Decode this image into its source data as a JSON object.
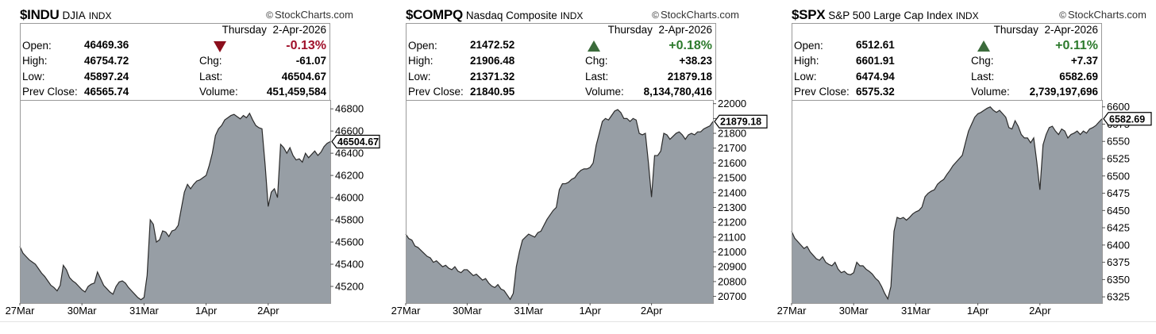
{
  "chart_data": [
    {
      "type": "area",
      "symbol": "$INDU",
      "name": "DJIA",
      "exchange": "INDX",
      "brand": "StockCharts.com",
      "day": "Thursday",
      "date": "2-Apr-2026",
      "change_pct": "-0.13%",
      "direction": "down",
      "stats": {
        "open": {
          "label": "Open:",
          "value": "46469.36"
        },
        "high": {
          "label": "High:",
          "value": "46754.72"
        },
        "low": {
          "label": "Low:",
          "value": "45897.24"
        },
        "prev_close": {
          "label": "Prev Close:",
          "value": "46565.74"
        },
        "chg": {
          "label": "Chg:",
          "value": "-61.07"
        },
        "last": {
          "label": "Last:",
          "value": "46504.67"
        },
        "volume": {
          "label": "Volume:",
          "value": "451,459,584"
        }
      },
      "last_label": "46504.67",
      "last_value": 46504.67,
      "ylim": [
        45050,
        46880
      ],
      "yticks": [
        46800,
        46600,
        46400,
        46200,
        46000,
        45800,
        45600,
        45400,
        45200
      ],
      "ytick_labels": [
        "46800",
        "46600",
        "46400",
        "46200",
        "46000",
        "45800",
        "45600",
        "45400",
        "45200"
      ],
      "xlim": [
        0,
        5
      ],
      "xticks": [
        {
          "x": 0,
          "label": "27Mar"
        },
        {
          "x": 1,
          "label": "30Mar"
        },
        {
          "x": 2,
          "label": "31Mar"
        },
        {
          "x": 3,
          "label": "1Apr"
        },
        {
          "x": 4,
          "label": "2Apr"
        }
      ],
      "x": [
        0,
        0.05,
        0.1,
        0.15,
        0.2,
        0.25,
        0.3,
        0.35,
        0.4,
        0.45,
        0.5,
        0.55,
        0.6,
        0.65,
        0.7,
        0.75,
        0.8,
        0.85,
        0.9,
        0.95,
        1,
        1.05,
        1.1,
        1.15,
        1.2,
        1.25,
        1.3,
        1.35,
        1.4,
        1.45,
        1.5,
        1.55,
        1.6,
        1.65,
        1.7,
        1.75,
        1.8,
        1.85,
        1.9,
        1.95,
        2,
        2.05,
        2.1,
        2.15,
        2.2,
        2.25,
        2.3,
        2.35,
        2.4,
        2.45,
        2.5,
        2.55,
        2.6,
        2.65,
        2.7,
        2.75,
        2.8,
        2.85,
        2.9,
        2.95,
        3,
        3.05,
        3.1,
        3.15,
        3.2,
        3.25,
        3.3,
        3.35,
        3.4,
        3.45,
        3.5,
        3.55,
        3.6,
        3.65,
        3.7,
        3.75,
        3.8,
        3.85,
        3.9,
        3.95,
        4,
        4.05,
        4.1,
        4.15,
        4.2,
        4.25,
        4.3,
        4.35,
        4.4,
        4.45,
        4.5,
        4.55,
        4.6,
        4.65,
        4.7,
        4.75,
        4.8,
        4.85,
        4.9,
        4.95,
        5
      ],
      "y": [
        45560,
        45500,
        45470,
        45440,
        45420,
        45400,
        45360,
        45320,
        45290,
        45250,
        45210,
        45190,
        45160,
        45210,
        45390,
        45350,
        45280,
        45250,
        45230,
        45200,
        45170,
        45150,
        45200,
        45220,
        45230,
        45330,
        45270,
        45210,
        45180,
        45150,
        45130,
        45200,
        45240,
        45250,
        45230,
        45190,
        45160,
        45130,
        45100,
        45080,
        45100,
        45300,
        45800,
        45760,
        45600,
        45620,
        45700,
        45690,
        45650,
        45700,
        45710,
        45750,
        45900,
        46050,
        46120,
        46080,
        46120,
        46150,
        46160,
        46180,
        46200,
        46290,
        46400,
        46560,
        46620,
        46650,
        46700,
        46720,
        46740,
        46750,
        46730,
        46710,
        46740,
        46720,
        46760,
        46700,
        46650,
        46630,
        46620,
        46300,
        45920,
        46050,
        46080,
        46000,
        46480,
        46450,
        46400,
        46450,
        46380,
        46340,
        46350,
        46320,
        46400,
        46360,
        46390,
        46420,
        46380,
        46410,
        46460,
        46490,
        46504.67
      ]
    },
    {
      "type": "area",
      "symbol": "$COMPQ",
      "name": "Nasdaq Composite",
      "exchange": "INDX",
      "brand": "StockCharts.com",
      "day": "Thursday",
      "date": "2-Apr-2026",
      "change_pct": "+0.18%",
      "direction": "up",
      "stats": {
        "open": {
          "label": "Open:",
          "value": "21472.52"
        },
        "high": {
          "label": "High:",
          "value": "21906.48"
        },
        "low": {
          "label": "Low:",
          "value": "21371.32"
        },
        "prev_close": {
          "label": "Prev Close:",
          "value": "21840.95"
        },
        "chg": {
          "label": "Chg:",
          "value": "+38.23"
        },
        "last": {
          "label": "Last:",
          "value": "21879.18"
        },
        "volume": {
          "label": "Volume:",
          "value": "8,134,780,416"
        }
      },
      "last_label": "21879.18",
      "last_value": 21879.18,
      "ylim": [
        20655,
        22025
      ],
      "yticks": [
        22000,
        21900,
        21800,
        21700,
        21600,
        21500,
        21400,
        21300,
        21200,
        21100,
        21000,
        20900,
        20800,
        20700
      ],
      "ytick_labels": [
        "22000",
        "21900",
        "21800",
        "21700",
        "21600",
        "21500",
        "21400",
        "21300",
        "21200",
        "21100",
        "21000",
        "20900",
        "20800",
        "20700"
      ],
      "xlim": [
        0,
        5
      ],
      "xticks": [
        {
          "x": 0,
          "label": "27Mar"
        },
        {
          "x": 1,
          "label": "30Mar"
        },
        {
          "x": 2,
          "label": "31Mar"
        },
        {
          "x": 3,
          "label": "1Apr"
        },
        {
          "x": 4,
          "label": "2Apr"
        }
      ],
      "x": [
        0,
        0.05,
        0.1,
        0.15,
        0.2,
        0.25,
        0.3,
        0.35,
        0.4,
        0.45,
        0.5,
        0.55,
        0.6,
        0.65,
        0.7,
        0.75,
        0.8,
        0.85,
        0.9,
        0.95,
        1,
        1.05,
        1.1,
        1.15,
        1.2,
        1.25,
        1.3,
        1.35,
        1.4,
        1.45,
        1.5,
        1.55,
        1.6,
        1.65,
        1.7,
        1.75,
        1.8,
        1.85,
        1.9,
        1.95,
        2,
        2.05,
        2.1,
        2.15,
        2.2,
        2.25,
        2.3,
        2.35,
        2.4,
        2.45,
        2.5,
        2.55,
        2.6,
        2.65,
        2.7,
        2.75,
        2.8,
        2.85,
        2.9,
        2.95,
        3,
        3.05,
        3.1,
        3.15,
        3.2,
        3.25,
        3.3,
        3.35,
        3.4,
        3.45,
        3.5,
        3.55,
        3.6,
        3.65,
        3.7,
        3.75,
        3.8,
        3.85,
        3.9,
        3.95,
        4,
        4.05,
        4.1,
        4.15,
        4.2,
        4.25,
        4.3,
        4.35,
        4.4,
        4.45,
        4.5,
        4.55,
        4.6,
        4.65,
        4.7,
        4.75,
        4.8,
        4.85,
        4.9,
        4.95,
        5
      ],
      "y": [
        21120,
        21090,
        21080,
        21040,
        21030,
        21010,
        20990,
        20970,
        20960,
        20930,
        20940,
        20920,
        20900,
        20910,
        20890,
        20880,
        20900,
        20870,
        20860,
        20880,
        20880,
        20860,
        20840,
        20850,
        20830,
        20810,
        20820,
        20790,
        20770,
        20760,
        20780,
        20750,
        20740,
        20710,
        20680,
        20720,
        20900,
        21000,
        21080,
        21100,
        21120,
        21110,
        21100,
        21130,
        21140,
        21180,
        21220,
        21250,
        21280,
        21300,
        21420,
        21460,
        21460,
        21470,
        21490,
        21500,
        21530,
        21550,
        21560,
        21560,
        21570,
        21600,
        21720,
        21800,
        21880,
        21900,
        21890,
        21920,
        21950,
        21960,
        21940,
        21900,
        21900,
        21880,
        21900,
        21890,
        21800,
        21790,
        21800,
        21600,
        21370,
        21650,
        21650,
        21680,
        21800,
        21790,
        21760,
        21780,
        21800,
        21810,
        21790,
        21760,
        21790,
        21800,
        21790,
        21810,
        21810,
        21830,
        21840,
        21850,
        21879.18
      ]
    },
    {
      "type": "area",
      "symbol": "$SPX",
      "name": "S&P 500 Large Cap Index",
      "exchange": "INDX",
      "brand": "StockCharts.com",
      "day": "Thursday",
      "date": "2-Apr-2026",
      "change_pct": "+0.11%",
      "direction": "up",
      "stats": {
        "open": {
          "label": "Open:",
          "value": "6512.61"
        },
        "high": {
          "label": "High:",
          "value": "6601.91"
        },
        "low": {
          "label": "Low:",
          "value": "6474.94"
        },
        "prev_close": {
          "label": "Prev Close:",
          "value": "6575.32"
        },
        "chg": {
          "label": "Chg:",
          "value": "+7.37"
        },
        "last": {
          "label": "Last:",
          "value": "6582.69"
        },
        "volume": {
          "label": "Volume:",
          "value": "2,739,197,696"
        }
      },
      "last_label": "6582.69",
      "last_value": 6582.69,
      "ylim": [
        6316,
        6610
      ],
      "yticks": [
        6600,
        6575,
        6550,
        6525,
        6500,
        6475,
        6450,
        6425,
        6400,
        6375,
        6350,
        6325
      ],
      "ytick_labels": [
        "6600",
        "6575",
        "6550",
        "6525",
        "6500",
        "6475",
        "6450",
        "6425",
        "6400",
        "6375",
        "6350",
        "6325"
      ],
      "xlim": [
        0,
        5
      ],
      "xticks": [
        {
          "x": 0,
          "label": "27Mar"
        },
        {
          "x": 1,
          "label": "30Mar"
        },
        {
          "x": 2,
          "label": "31Mar"
        },
        {
          "x": 3,
          "label": "1Apr"
        },
        {
          "x": 4,
          "label": "2Apr"
        }
      ],
      "x": [
        0,
        0.05,
        0.1,
        0.15,
        0.2,
        0.25,
        0.3,
        0.35,
        0.4,
        0.45,
        0.5,
        0.55,
        0.6,
        0.65,
        0.7,
        0.75,
        0.8,
        0.85,
        0.9,
        0.95,
        1,
        1.05,
        1.1,
        1.15,
        1.2,
        1.25,
        1.3,
        1.35,
        1.4,
        1.45,
        1.5,
        1.55,
        1.6,
        1.65,
        1.7,
        1.75,
        1.8,
        1.85,
        1.9,
        1.95,
        2,
        2.05,
        2.1,
        2.15,
        2.2,
        2.25,
        2.3,
        2.35,
        2.4,
        2.45,
        2.5,
        2.55,
        2.6,
        2.65,
        2.7,
        2.75,
        2.8,
        2.85,
        2.9,
        2.95,
        3,
        3.05,
        3.1,
        3.15,
        3.2,
        3.25,
        3.3,
        3.35,
        3.4,
        3.45,
        3.5,
        3.55,
        3.6,
        3.65,
        3.7,
        3.75,
        3.8,
        3.85,
        3.9,
        3.95,
        4,
        4.05,
        4.1,
        4.15,
        4.2,
        4.25,
        4.3,
        4.35,
        4.4,
        4.45,
        4.5,
        4.55,
        4.6,
        4.65,
        4.7,
        4.75,
        4.8,
        4.85,
        4.9,
        4.95,
        5
      ],
      "y": [
        6420,
        6410,
        6405,
        6400,
        6395,
        6398,
        6390,
        6385,
        6380,
        6378,
        6383,
        6375,
        6372,
        6370,
        6375,
        6365,
        6360,
        6362,
        6358,
        6357,
        6360,
        6375,
        6370,
        6370,
        6365,
        6362,
        6358,
        6352,
        6348,
        6340,
        6330,
        6322,
        6340,
        6420,
        6440,
        6438,
        6440,
        6436,
        6440,
        6445,
        6448,
        6450,
        6455,
        6470,
        6475,
        6478,
        6480,
        6488,
        6492,
        6495,
        6502,
        6508,
        6515,
        6520,
        6525,
        6530,
        6548,
        6565,
        6575,
        6585,
        6590,
        6592,
        6595,
        6598,
        6600,
        6595,
        6592,
        6595,
        6590,
        6585,
        6570,
        6568,
        6580,
        6572,
        6560,
        6555,
        6555,
        6548,
        6555,
        6520,
        6480,
        6545,
        6560,
        6570,
        6572,
        6565,
        6560,
        6568,
        6565,
        6555,
        6560,
        6562,
        6565,
        6560,
        6565,
        6562,
        6568,
        6570,
        6573,
        6578,
        6582.69
      ]
    }
  ]
}
